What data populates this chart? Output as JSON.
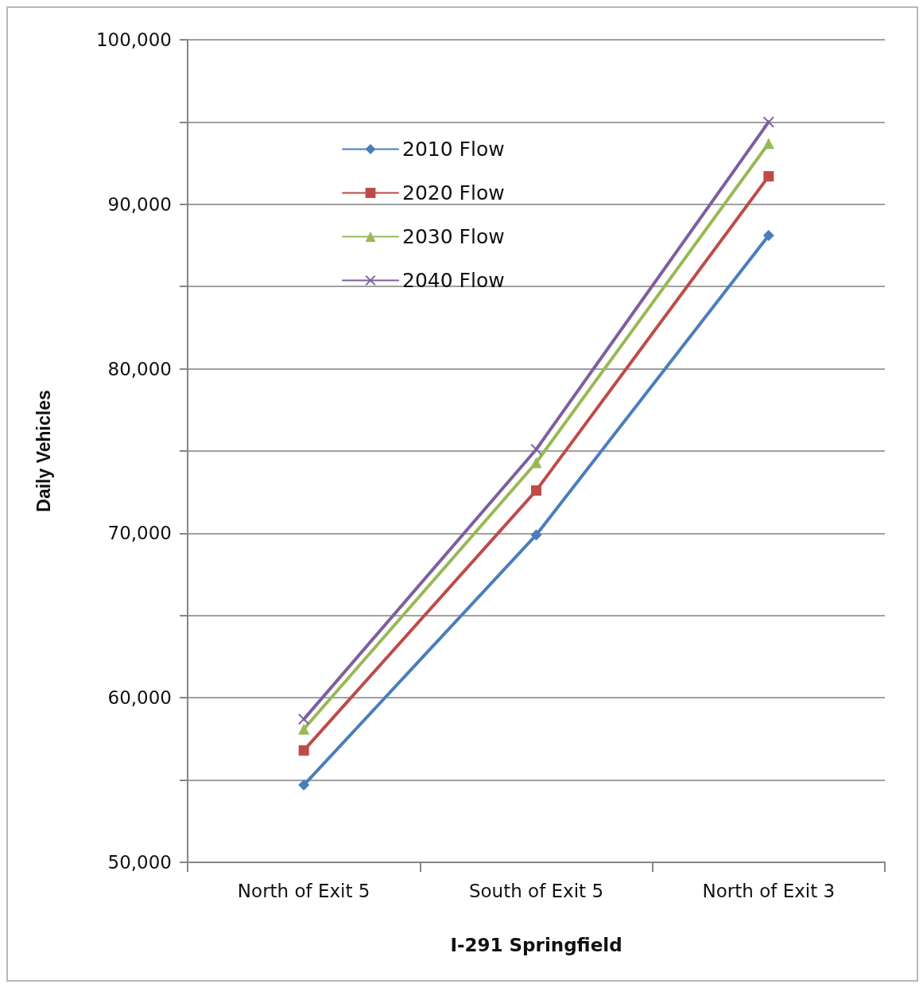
{
  "chart_data": {
    "type": "line",
    "xlabel": "I-291 Springfield",
    "ylabel": "Daily Vehicles",
    "categories": [
      "North of Exit 5",
      "South of Exit 5",
      "North of Exit 3"
    ],
    "series": [
      {
        "name": "2010 Flow",
        "color": "#4a7ebb",
        "marker": "diamond",
        "values": [
          54700,
          69900,
          88100
        ]
      },
      {
        "name": "2020 Flow",
        "color": "#be4b48",
        "marker": "square",
        "values": [
          56800,
          72600,
          91700
        ]
      },
      {
        "name": "2030 Flow",
        "color": "#98b954",
        "marker": "triangle",
        "values": [
          58100,
          74300,
          93700
        ]
      },
      {
        "name": "2040 Flow",
        "color": "#7d5fa0",
        "marker": "cross",
        "values": [
          58700,
          75100,
          95000
        ]
      }
    ],
    "ylim": [
      50000,
      100000
    ],
    "yticks": [
      {
        "value": 50000,
        "label": "50,000"
      },
      {
        "value": 55000,
        "label": null
      },
      {
        "value": 60000,
        "label": "60,000"
      },
      {
        "value": 65000,
        "label": null
      },
      {
        "value": 70000,
        "label": "70,000"
      },
      {
        "value": 75000,
        "label": null
      },
      {
        "value": 80000,
        "label": "80,000"
      },
      {
        "value": 85000,
        "label": null
      },
      {
        "value": 90000,
        "label": "90,000"
      },
      {
        "value": 95000,
        "label": null
      },
      {
        "value": 100000,
        "label": "100,000"
      }
    ],
    "grid": "y",
    "legend": "top left",
    "line_style": "solid"
  }
}
